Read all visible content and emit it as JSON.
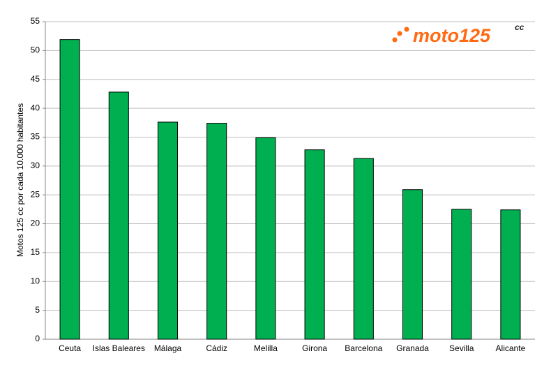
{
  "chart_data": {
    "type": "bar",
    "y_label": "Motos 125 cc por cada 10.000 habitantes",
    "categories": [
      "Ceuta",
      "Islas Baleares",
      "Málaga",
      "Cádiz",
      "Melilla",
      "Girona",
      "Barcelona",
      "Granada",
      "Sevilla",
      "Alicante"
    ],
    "values": [
      51.9,
      42.8,
      37.6,
      37.4,
      34.9,
      32.8,
      31.3,
      25.9,
      22.5,
      22.4
    ],
    "color": "#00b050",
    "ylim": [
      0,
      55
    ],
    "yticks": [
      0,
      5,
      10,
      15,
      20,
      25,
      30,
      35,
      40,
      45,
      50,
      55
    ],
    "grid": true,
    "logo": {
      "text": "moto125",
      "superscript": "cc"
    }
  }
}
